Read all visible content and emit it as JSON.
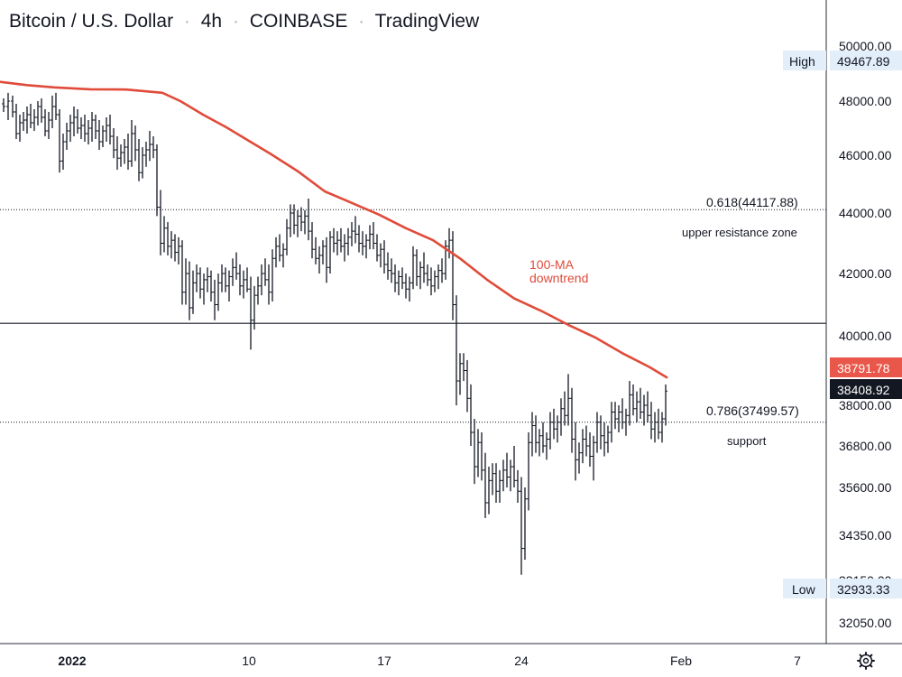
{
  "header": {
    "title_parts": [
      "Bitcoin / U.S. Dollar",
      "4h",
      "COINBASE",
      "TradingView"
    ]
  },
  "chart_data": {
    "type": "line",
    "y_ticks": [
      "50000.00",
      "48000.00",
      "46000.00",
      "44000.00",
      "42000.00",
      "40000.00",
      "38000.00",
      "36800.00",
      "35600.00",
      "34350.00",
      "33150.00",
      "32050.00"
    ],
    "x_ticks": [
      {
        "label": "2022",
        "bold": true
      },
      {
        "label": "10",
        "bold": false
      },
      {
        "label": "17",
        "bold": false
      },
      {
        "label": "24",
        "bold": false
      },
      {
        "label": "Feb",
        "bold": false
      },
      {
        "label": "7",
        "bold": false
      }
    ],
    "badges": {
      "high_label": "High",
      "high_value": "49467.89",
      "low_label": "Low",
      "low_value": "32933.33",
      "ma_value": "38791.78",
      "last_price": "38408.92"
    },
    "fib_levels": [
      {
        "label": "0.618(44117.88)",
        "value": 44117.88,
        "zone": "upper resistance zone"
      },
      {
        "label": "0.786(37499.57)",
        "value": 37499.57,
        "zone": "support"
      }
    ],
    "horizontal_line": 40400,
    "ma_label": [
      "100-MA",
      "downtrend"
    ],
    "ma_series": [
      [
        0,
        48700
      ],
      [
        30,
        48580
      ],
      [
        60,
        48500
      ],
      [
        100,
        48430
      ],
      [
        140,
        48420
      ],
      [
        180,
        48300
      ],
      [
        200,
        48000
      ],
      [
        225,
        47500
      ],
      [
        250,
        47050
      ],
      [
        270,
        46650
      ],
      [
        300,
        46050
      ],
      [
        330,
        45450
      ],
      [
        360,
        44750
      ],
      [
        390,
        44350
      ],
      [
        420,
        43950
      ],
      [
        450,
        43500
      ],
      [
        480,
        43100
      ],
      [
        510,
        42500
      ],
      [
        540,
        41800
      ],
      [
        570,
        41200
      ],
      [
        600,
        40800
      ],
      [
        630,
        40350
      ],
      [
        660,
        39950
      ],
      [
        690,
        39500
      ],
      [
        720,
        39100
      ],
      [
        740,
        38790
      ]
    ],
    "price_bars": [
      [
        4,
        47900,
        48100,
        47600,
        47800
      ],
      [
        9,
        47800,
        48300,
        47300,
        48000
      ],
      [
        14,
        48000,
        48200,
        47400,
        47600
      ],
      [
        18,
        47600,
        47900,
        46600,
        46800
      ],
      [
        22,
        46800,
        47500,
        46500,
        47200
      ],
      [
        26,
        47200,
        47600,
        46900,
        47300
      ],
      [
        30,
        47300,
        47800,
        46800,
        47500
      ],
      [
        34,
        47500,
        47900,
        47000,
        47200
      ],
      [
        38,
        47200,
        47700,
        46900,
        47400
      ],
      [
        42,
        47400,
        48000,
        47100,
        47800
      ],
      [
        46,
        47800,
        48100,
        47200,
        47400
      ],
      [
        50,
        47400,
        47700,
        46700,
        46900
      ],
      [
        54,
        46900,
        47600,
        46600,
        47300
      ],
      [
        58,
        47300,
        48200,
        47000,
        47800
      ],
      [
        62,
        47800,
        48300,
        47300,
        47500
      ],
      [
        66,
        47500,
        47700,
        45400,
        45800
      ],
      [
        70,
        45800,
        46800,
        45500,
        46500
      ],
      [
        74,
        46500,
        47200,
        46200,
        46900
      ],
      [
        78,
        46900,
        47500,
        46500,
        47200
      ],
      [
        82,
        47200,
        47800,
        46700,
        47400
      ],
      [
        86,
        47400,
        47700,
        46800,
        47000
      ],
      [
        90,
        47000,
        47400,
        46600,
        47100
      ],
      [
        94,
        47100,
        47500,
        46500,
        46800
      ],
      [
        98,
        46800,
        47300,
        46400,
        47000
      ],
      [
        102,
        47000,
        47600,
        46500,
        47300
      ],
      [
        106,
        47300,
        47500,
        46600,
        46900
      ],
      [
        110,
        46900,
        47300,
        46200,
        46500
      ],
      [
        114,
        46500,
        47100,
        46300,
        46900
      ],
      [
        118,
        46900,
        47400,
        46500,
        47100
      ],
      [
        122,
        47100,
        47500,
        46400,
        46700
      ],
      [
        126,
        46700,
        47000,
        45900,
        46200
      ],
      [
        130,
        46200,
        46700,
        45500,
        45900
      ],
      [
        134,
        45900,
        46400,
        45600,
        46100
      ],
      [
        138,
        46100,
        46600,
        45700,
        46300
      ],
      [
        142,
        46300,
        46800,
        45500,
        45800
      ],
      [
        146,
        45800,
        47300,
        45600,
        46800
      ],
      [
        150,
        46800,
        47100,
        45800,
        46200
      ],
      [
        154,
        46200,
        46600,
        45100,
        45400
      ],
      [
        158,
        45400,
        46300,
        45200,
        46000
      ],
      [
        162,
        46000,
        46500,
        45600,
        46200
      ],
      [
        166,
        46200,
        46900,
        45800,
        46400
      ],
      [
        170,
        46400,
        46700,
        45900,
        46200
      ],
      [
        174,
        46200,
        46400,
        43900,
        44200
      ],
      [
        178,
        44200,
        44800,
        42600,
        43000
      ],
      [
        182,
        43000,
        43900,
        42700,
        43500
      ],
      [
        186,
        43500,
        43700,
        42600,
        42900
      ],
      [
        190,
        42900,
        43400,
        42500,
        43100
      ],
      [
        194,
        43100,
        43300,
        42400,
        42700
      ],
      [
        198,
        42700,
        43200,
        42300,
        42900
      ],
      [
        202,
        42900,
        43100,
        41000,
        41400
      ],
      [
        206,
        41400,
        42500,
        41000,
        42000
      ],
      [
        210,
        42000,
        42400,
        40500,
        40900
      ],
      [
        214,
        40900,
        42100,
        40700,
        41700
      ],
      [
        218,
        41700,
        42300,
        41400,
        42000
      ],
      [
        222,
        42000,
        42200,
        41200,
        41500
      ],
      [
        226,
        41500,
        42000,
        41000,
        41800
      ],
      [
        230,
        41800,
        42200,
        41400,
        41900
      ],
      [
        234,
        41900,
        42100,
        41100,
        41400
      ],
      [
        238,
        41400,
        41800,
        40500,
        41000
      ],
      [
        242,
        41000,
        42000,
        40800,
        41700
      ],
      [
        246,
        41700,
        42300,
        41400,
        42000
      ],
      [
        250,
        42000,
        42200,
        41400,
        41600
      ],
      [
        254,
        41600,
        42100,
        41100,
        41900
      ],
      [
        258,
        41900,
        42500,
        41600,
        42200
      ],
      [
        262,
        42200,
        42700,
        41800,
        42000
      ],
      [
        266,
        42000,
        42300,
        41300,
        41600
      ],
      [
        270,
        41600,
        42100,
        41200,
        41800
      ],
      [
        274,
        41800,
        42200,
        41400,
        41500
      ],
      [
        278,
        41500,
        41900,
        39600,
        40500
      ],
      [
        282,
        40500,
        41600,
        40200,
        41300
      ],
      [
        286,
        41300,
        41900,
        41000,
        41600
      ],
      [
        290,
        41600,
        42300,
        41300,
        42000
      ],
      [
        294,
        42000,
        42500,
        41600,
        41800
      ],
      [
        298,
        41800,
        42300,
        41000,
        41400
      ],
      [
        302,
        41400,
        42800,
        41100,
        42500
      ],
      [
        306,
        42500,
        43200,
        42200,
        42900
      ],
      [
        310,
        42900,
        43300,
        42400,
        42600
      ],
      [
        314,
        42600,
        43000,
        42200,
        42800
      ],
      [
        318,
        42800,
        43800,
        42600,
        43500
      ],
      [
        322,
        43500,
        44300,
        43200,
        44000
      ],
      [
        326,
        44000,
        44300,
        43300,
        43600
      ],
      [
        330,
        43600,
        44100,
        43200,
        43900
      ],
      [
        334,
        43900,
        44200,
        43400,
        43700
      ],
      [
        338,
        43700,
        44100,
        43300,
        43900
      ],
      [
        342,
        43900,
        44500,
        43100,
        43400
      ],
      [
        346,
        43400,
        43700,
        42500,
        42800
      ],
      [
        350,
        42800,
        43200,
        42300,
        42500
      ],
      [
        354,
        42500,
        42900,
        42000,
        42600
      ],
      [
        358,
        42600,
        43100,
        42300,
        42900
      ],
      [
        362,
        42900,
        43200,
        41700,
        42200
      ],
      [
        366,
        42200,
        43400,
        42000,
        43200
      ],
      [
        370,
        43200,
        43500,
        42700,
        43000
      ],
      [
        374,
        43000,
        43400,
        42600,
        43100
      ],
      [
        378,
        43100,
        43500,
        42700,
        42900
      ],
      [
        382,
        42900,
        43300,
        42400,
        43000
      ],
      [
        386,
        43000,
        43500,
        42600,
        43200
      ],
      [
        390,
        43200,
        43700,
        42900,
        43400
      ],
      [
        394,
        43400,
        43900,
        43000,
        43300
      ],
      [
        398,
        43300,
        43600,
        42700,
        43000
      ],
      [
        402,
        43000,
        43400,
        42600,
        42900
      ],
      [
        406,
        42900,
        43300,
        42500,
        43100
      ],
      [
        410,
        43100,
        43600,
        42800,
        43300
      ],
      [
        414,
        43300,
        43700,
        42800,
        43000
      ],
      [
        418,
        43000,
        43300,
        42400,
        42600
      ],
      [
        422,
        42600,
        43000,
        42200,
        42800
      ],
      [
        426,
        42800,
        43100,
        42000,
        42300
      ],
      [
        430,
        42300,
        42700,
        41800,
        42100
      ],
      [
        434,
        42100,
        42500,
        41700,
        42000
      ],
      [
        438,
        42000,
        42300,
        41400,
        41700
      ],
      [
        442,
        41700,
        42100,
        41300,
        41900
      ],
      [
        446,
        41900,
        42200,
        41500,
        41700
      ],
      [
        450,
        41700,
        42000,
        41200,
        41500
      ],
      [
        454,
        41500,
        41900,
        41100,
        41700
      ],
      [
        458,
        41700,
        42900,
        41500,
        42600
      ],
      [
        462,
        42600,
        42800,
        41600,
        41900
      ],
      [
        466,
        41900,
        42400,
        41500,
        42200
      ],
      [
        470,
        42200,
        42700,
        41700,
        42000
      ],
      [
        474,
        42000,
        42300,
        41600,
        41800
      ],
      [
        478,
        41800,
        42200,
        41300,
        41600
      ],
      [
        482,
        41600,
        42100,
        41400,
        41900
      ],
      [
        486,
        41900,
        42300,
        41500,
        42100
      ],
      [
        490,
        42100,
        42500,
        41700,
        42000
      ],
      [
        494,
        42000,
        43100,
        41800,
        42900
      ],
      [
        498,
        42900,
        43500,
        42500,
        43100
      ],
      [
        502,
        43100,
        43400,
        40500,
        41000
      ],
      [
        506,
        41000,
        41300,
        38000,
        38700
      ],
      [
        510,
        38700,
        39500,
        38300,
        39200
      ],
      [
        514,
        39200,
        39500,
        38700,
        39000
      ],
      [
        518,
        39000,
        39300,
        37800,
        38200
      ],
      [
        522,
        38200,
        38600,
        36800,
        37200
      ],
      [
        526,
        37200,
        37600,
        35700,
        36200
      ],
      [
        530,
        36200,
        37300,
        35900,
        36900
      ],
      [
        534,
        36900,
        37200,
        35800,
        36100
      ],
      [
        538,
        36100,
        36600,
        34800,
        35200
      ],
      [
        542,
        35200,
        36200,
        34900,
        35800
      ],
      [
        546,
        35800,
        36300,
        35400,
        36000
      ],
      [
        550,
        36000,
        36300,
        35200,
        35500
      ],
      [
        554,
        35500,
        36100,
        35200,
        35800
      ],
      [
        558,
        35800,
        36400,
        35500,
        36100
      ],
      [
        562,
        36100,
        36600,
        35600,
        35900
      ],
      [
        566,
        35900,
        36400,
        35500,
        36200
      ],
      [
        570,
        36200,
        36800,
        35600,
        35800
      ],
      [
        574,
        35800,
        36100,
        35200,
        35500
      ],
      [
        578,
        35500,
        35900,
        33300,
        34000
      ],
      [
        582,
        34000,
        35600,
        33700,
        35300
      ],
      [
        586,
        35300,
        37200,
        35000,
        36900
      ],
      [
        590,
        36900,
        37800,
        36500,
        37400
      ],
      [
        594,
        37400,
        37700,
        36600,
        36900
      ],
      [
        598,
        36900,
        37300,
        36500,
        37100
      ],
      [
        602,
        37100,
        37500,
        36600,
        36800
      ],
      [
        606,
        36800,
        37200,
        36400,
        37000
      ],
      [
        610,
        37000,
        37800,
        36700,
        37500
      ],
      [
        614,
        37500,
        37900,
        37000,
        37300
      ],
      [
        618,
        37300,
        37700,
        36900,
        37500
      ],
      [
        622,
        37500,
        38200,
        37100,
        37900
      ],
      [
        626,
        37900,
        38400,
        37400,
        37700
      ],
      [
        630,
        37700,
        38900,
        37400,
        38200
      ],
      [
        634,
        38200,
        38500,
        36600,
        37000
      ],
      [
        638,
        37000,
        37500,
        35800,
        36400
      ],
      [
        642,
        36400,
        36900,
        36000,
        36600
      ],
      [
        646,
        36600,
        37300,
        36300,
        37000
      ],
      [
        650,
        37000,
        37400,
        36500,
        36800
      ],
      [
        654,
        36800,
        37200,
        36200,
        36500
      ],
      [
        658,
        36500,
        37100,
        35800,
        36900
      ],
      [
        662,
        36900,
        37800,
        36600,
        37500
      ],
      [
        666,
        37500,
        37700,
        36700,
        37100
      ],
      [
        670,
        37100,
        37500,
        36500,
        36900
      ],
      [
        674,
        36900,
        37400,
        36600,
        37200
      ],
      [
        678,
        37200,
        38100,
        36900,
        37800
      ],
      [
        682,
        37800,
        38100,
        37300,
        37600
      ],
      [
        686,
        37600,
        38000,
        37200,
        37800
      ],
      [
        690,
        37800,
        38200,
        37300,
        37500
      ],
      [
        694,
        37500,
        37900,
        37100,
        37700
      ],
      [
        698,
        37700,
        38700,
        37400,
        38300
      ],
      [
        702,
        38300,
        38600,
        37700,
        37900
      ],
      [
        706,
        37900,
        38400,
        37500,
        38100
      ],
      [
        710,
        38100,
        38500,
        37600,
        37800
      ],
      [
        714,
        37800,
        38300,
        37400,
        38000
      ],
      [
        718,
        38000,
        38400,
        37500,
        37700
      ],
      [
        722,
        37700,
        38100,
        37000,
        37300
      ],
      [
        726,
        37300,
        37800,
        36900,
        37500
      ],
      [
        730,
        37500,
        37900,
        37000,
        37200
      ],
      [
        734,
        37200,
        37800,
        36900,
        37600
      ],
      [
        738,
        37600,
        38600,
        37400,
        38408
      ]
    ]
  }
}
